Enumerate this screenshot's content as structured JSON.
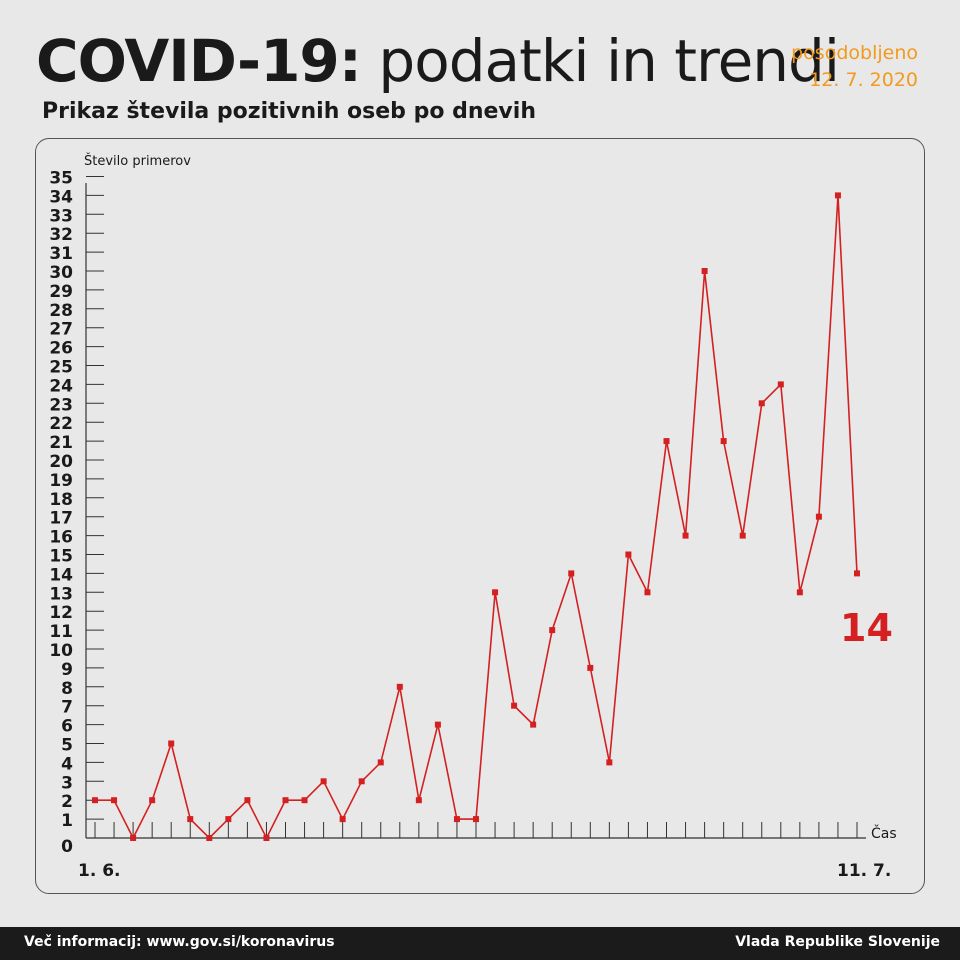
{
  "header": {
    "title_bold": "COVID-19:",
    "title_light": "podatki in trendi",
    "updated_label": "posodobljeno",
    "updated_date": "12. 7. 2020",
    "subtitle": "Prikaz števila pozitivnih oseb po dnevih"
  },
  "chart_data": {
    "type": "line",
    "title": "Prikaz števila pozitivnih oseb po dnevih",
    "ylabel": "Število primerov",
    "xlabel": "Čas",
    "x_start_label": "1. 6.",
    "x_end_label": "11. 7.",
    "ylim": [
      0,
      35
    ],
    "yticks": [
      0,
      1,
      2,
      3,
      4,
      5,
      6,
      7,
      8,
      9,
      10,
      11,
      12,
      13,
      14,
      15,
      16,
      17,
      18,
      19,
      20,
      21,
      22,
      23,
      24,
      25,
      26,
      27,
      28,
      29,
      30,
      31,
      32,
      33,
      34,
      35
    ],
    "series": [
      {
        "values": [
          2,
          2,
          0,
          2,
          5,
          1,
          0,
          1,
          2,
          0,
          2,
          2,
          3,
          1,
          3,
          4,
          8,
          2,
          6,
          1,
          1,
          13,
          7,
          6,
          11,
          14,
          9,
          4,
          15,
          13,
          21,
          16,
          30,
          21,
          16,
          23,
          24,
          13,
          17,
          34,
          14
        ]
      }
    ],
    "last_value_label": "14",
    "line_color": "#d42020",
    "grid": false
  },
  "footer": {
    "left": "Več informacij: www.gov.si/koronavirus",
    "right": "Vlada Republike Slovenije"
  },
  "colors": {
    "accent": "#f39a1e",
    "line": "#d42020",
    "background": "#e8e8e8",
    "footer": "#1b1b1b"
  }
}
